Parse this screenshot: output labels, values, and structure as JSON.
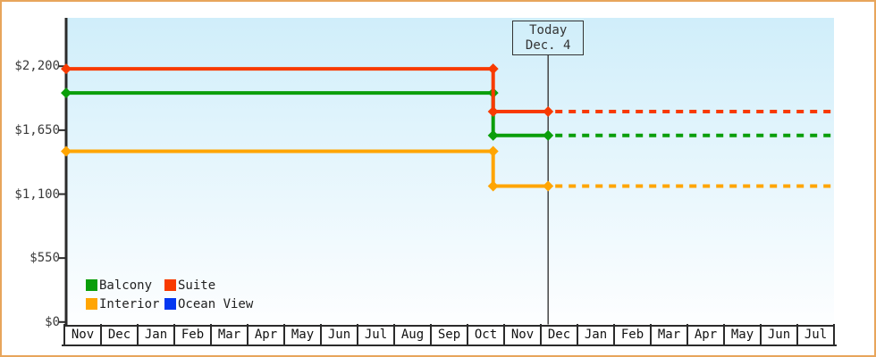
{
  "chart_data": {
    "type": "line",
    "title": "",
    "description": "Cruise cabin price history by category; solid step lines up to Today (Dec. 4), dotted lines after",
    "x_categories": [
      "Nov",
      "Dec",
      "Jan",
      "Feb",
      "Mar",
      "Apr",
      "May",
      "Jun",
      "Jul",
      "Aug",
      "Sep",
      "Oct",
      "Nov",
      "Dec",
      "Jan",
      "Feb",
      "Mar",
      "Apr",
      "May",
      "Jun",
      "Jul"
    ],
    "ylim": [
      0,
      2200
    ],
    "y_ticks": [
      {
        "value": 2200,
        "label": "$2,200"
      },
      {
        "value": 1650,
        "label": "$1,650"
      },
      {
        "value": 1100,
        "label": "$1,100"
      },
      {
        "value": 550,
        "label": "$550"
      },
      {
        "value": 0,
        "label": "$0"
      }
    ],
    "grid": false,
    "legend_position": "bottom-left",
    "today": {
      "label_line1": "Today",
      "label_line2": "Dec. 4",
      "month_index": 13.2
    },
    "price_drop_month_index": 11.7,
    "dashed_after_today": true,
    "series": [
      {
        "name": "Balcony",
        "color": "#0a9e0a",
        "price_before_drop": 1970,
        "price_after_drop": 1605
      },
      {
        "name": "Suite",
        "color": "#f83a00",
        "price_before_drop": 2178,
        "price_after_drop": 1810
      },
      {
        "name": "Interior",
        "color": "#ffa502",
        "price_before_drop": 1468,
        "price_after_drop": 1169
      },
      {
        "name": "Ocean View",
        "color": "#0437f1",
        "price_before_drop": null,
        "price_after_drop": null
      }
    ]
  },
  "colors": {
    "frame_border": "#e8a55b",
    "plot_gradient_top": "#d0eefa",
    "plot_gradient_bottom": "#fdfeff",
    "axis": "#2b2b2b",
    "today_line": "#444444",
    "text": "#333333"
  }
}
